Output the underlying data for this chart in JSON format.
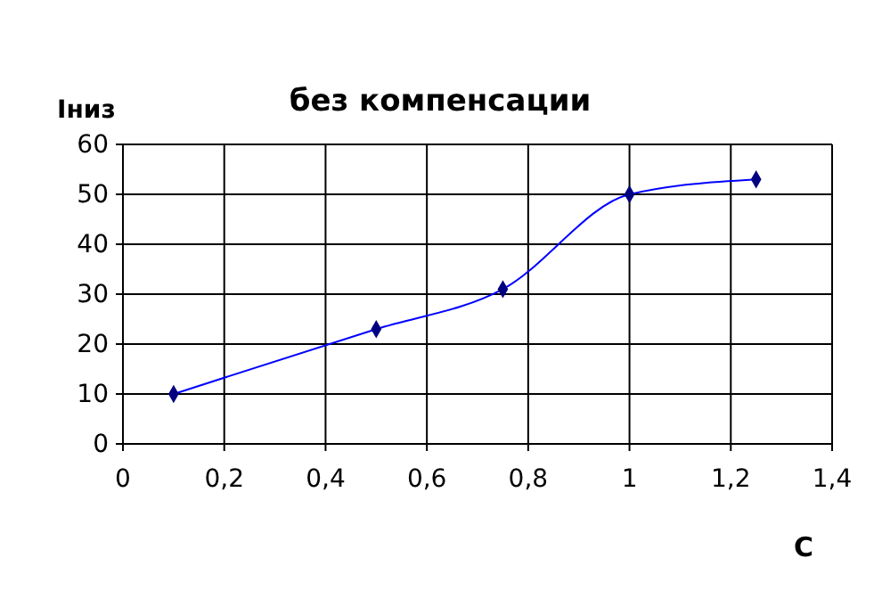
{
  "chart_data": {
    "type": "line",
    "title": "без компенсации",
    "xlabel": "С",
    "ylabel": "Iниз",
    "x": [
      0.1,
      0.5,
      0.75,
      1,
      1.25
    ],
    "series": [
      {
        "color": "#000080",
        "values": [
          10,
          23,
          31,
          50,
          53
        ]
      }
    ],
    "xlim": [
      0,
      1.4
    ],
    "xticks": [
      0,
      {
        "value": 0.2,
        "label": "0,2"
      },
      {
        "value": 0.4,
        "label": "0,4"
      },
      {
        "value": 0.6,
        "label": "0,6"
      },
      {
        "value": 0.8,
        "label": "0,8"
      },
      1,
      {
        "value": 1.2,
        "label": "1,2"
      },
      {
        "value": 1.4,
        "label": "1,4"
      }
    ],
    "ylim": [
      0,
      60
    ],
    "yticks": [
      0,
      10,
      20,
      30,
      40,
      50,
      60
    ],
    "grid": true,
    "marker": "diamond",
    "line_style": "solid"
  }
}
